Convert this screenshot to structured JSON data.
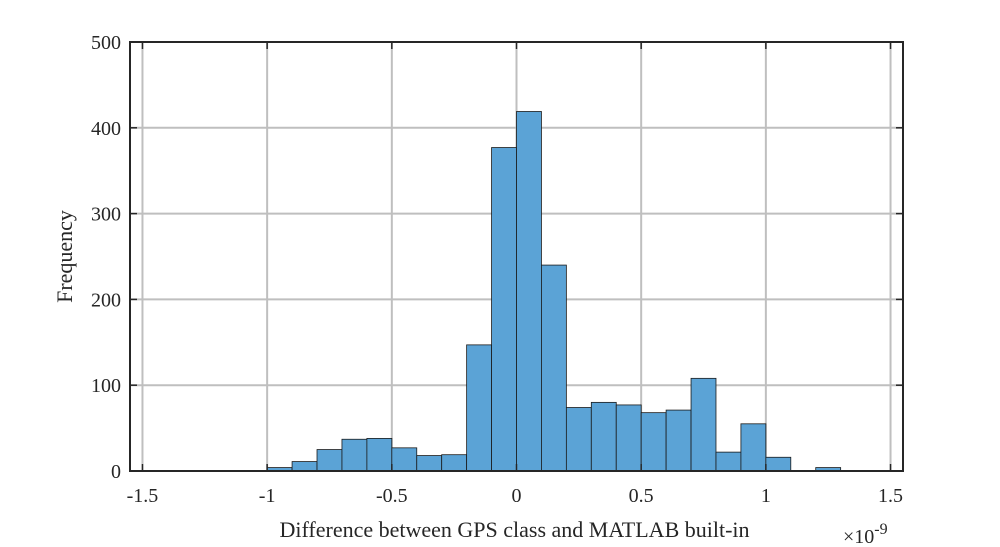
{
  "chart_data": {
    "type": "bar",
    "title": "",
    "xlabel": "Difference between GPS class and MATLAB built-in",
    "ylabel": "Frequency",
    "x_exponent_label": "×10",
    "x_exponent_power": "-9",
    "xlim": [
      -1.55,
      1.55
    ],
    "ylim": [
      0,
      500
    ],
    "xticks": [
      -1.5,
      -1,
      -0.5,
      0,
      0.5,
      1,
      1.5
    ],
    "xtick_labels": [
      "-1.5",
      "-1",
      "-0.5",
      "0",
      "0.5",
      "1",
      "1.5"
    ],
    "yticks": [
      0,
      100,
      200,
      300,
      400,
      500
    ],
    "ytick_labels": [
      "0",
      "100",
      "200",
      "300",
      "400",
      "500"
    ],
    "grid": true,
    "bin_width": 0.1,
    "bins": [
      {
        "x0": -1.0,
        "x1": -0.9,
        "count": 4
      },
      {
        "x0": -0.9,
        "x1": -0.8,
        "count": 11
      },
      {
        "x0": -0.8,
        "x1": -0.7,
        "count": 25
      },
      {
        "x0": -0.7,
        "x1": -0.6,
        "count": 37
      },
      {
        "x0": -0.6,
        "x1": -0.5,
        "count": 38
      },
      {
        "x0": -0.5,
        "x1": -0.4,
        "count": 27
      },
      {
        "x0": -0.4,
        "x1": -0.3,
        "count": 18
      },
      {
        "x0": -0.3,
        "x1": -0.2,
        "count": 19
      },
      {
        "x0": -0.2,
        "x1": -0.1,
        "count": 147
      },
      {
        "x0": -0.1,
        "x1": 0.0,
        "count": 377
      },
      {
        "x0": 0.0,
        "x1": 0.1,
        "count": 419
      },
      {
        "x0": 0.1,
        "x1": 0.2,
        "count": 240
      },
      {
        "x0": 0.2,
        "x1": 0.3,
        "count": 74
      },
      {
        "x0": 0.3,
        "x1": 0.4,
        "count": 80
      },
      {
        "x0": 0.4,
        "x1": 0.5,
        "count": 77
      },
      {
        "x0": 0.5,
        "x1": 0.6,
        "count": 68
      },
      {
        "x0": 0.6,
        "x1": 0.7,
        "count": 71
      },
      {
        "x0": 0.7,
        "x1": 0.8,
        "count": 108
      },
      {
        "x0": 0.8,
        "x1": 0.9,
        "count": 22
      },
      {
        "x0": 0.9,
        "x1": 1.0,
        "count": 55
      },
      {
        "x0": 1.0,
        "x1": 1.1,
        "count": 16
      },
      {
        "x0": 1.2,
        "x1": 1.3,
        "count": 4
      }
    ],
    "bar_color": "#5ba3d6"
  }
}
